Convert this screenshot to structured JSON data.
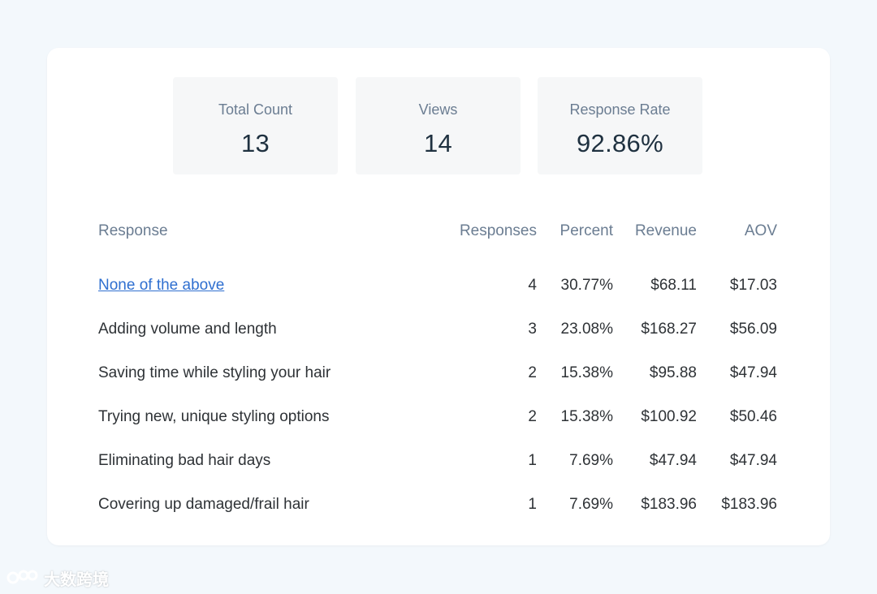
{
  "stats": [
    {
      "label": "Total Count",
      "value": "13"
    },
    {
      "label": "Views",
      "value": "14"
    },
    {
      "label": "Response Rate",
      "value": "92.86%"
    }
  ],
  "table": {
    "headers": {
      "response": "Response",
      "responses": "Responses",
      "percent": "Percent",
      "revenue": "Revenue",
      "aov": "AOV"
    },
    "rows": [
      {
        "response": "None of the above",
        "responses": "4",
        "percent": "30.77%",
        "revenue": "$68.11",
        "aov": "$17.03"
      },
      {
        "response": "Adding volume and length",
        "responses": "3",
        "percent": "23.08%",
        "revenue": "$168.27",
        "aov": "$56.09"
      },
      {
        "response": "Saving time while styling your hair",
        "responses": "2",
        "percent": "15.38%",
        "revenue": "$95.88",
        "aov": "$47.94"
      },
      {
        "response": "Trying new, unique styling options",
        "responses": "2",
        "percent": "15.38%",
        "revenue": "$100.92",
        "aov": "$50.46"
      },
      {
        "response": "Eliminating bad hair days",
        "responses": "1",
        "percent": "7.69%",
        "revenue": "$47.94",
        "aov": "$47.94"
      },
      {
        "response": "Covering up damaged/frail hair",
        "responses": "1",
        "percent": "7.69%",
        "revenue": "$183.96",
        "aov": "$183.96"
      }
    ]
  },
  "colors": {
    "link": "#2f6fd0",
    "muted": "#6b7d92",
    "stat_value": "#1f3140",
    "background": "#f3f8fc"
  },
  "watermark": {
    "text": "大数跨境"
  }
}
